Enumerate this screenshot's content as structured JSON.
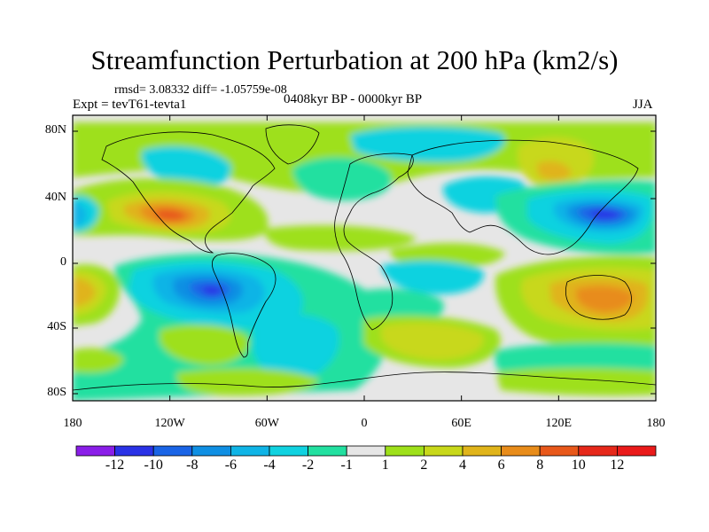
{
  "title": "Streamfunction Perturbation at 200 hPa (km2/s)",
  "stats": "rmsd= 3.08332  diff= -1.05759e-08",
  "experiment": "Expt = tevT61-tevta1",
  "period": "0408kyr BP - 0000kyr BP",
  "season": "JJA",
  "y_ticks": [
    "80N",
    "40N",
    "0",
    "40S",
    "80S"
  ],
  "x_ticks": [
    "180",
    "120W",
    "60W",
    "0",
    "60E",
    "120E",
    "180"
  ],
  "colorbar": {
    "labels": [
      "-12",
      "-10",
      "-8",
      "-6",
      "-4",
      "-2",
      "-1",
      "1",
      "2",
      "4",
      "6",
      "8",
      "10",
      "12"
    ],
    "colors": [
      "#8a1ee8",
      "#2a32e6",
      "#1a64e6",
      "#0f8fe3",
      "#0fb4e6",
      "#10d2e0",
      "#22e0a0",
      "#e6e6e6",
      "#9ee01a",
      "#c8d81a",
      "#e0b41a",
      "#e88c1a",
      "#e8581a",
      "#e6281a",
      "#ea1a1a"
    ]
  },
  "map": {
    "fill_colors": {
      "neutral": "#e6e6e6",
      "neg1": "#22e0a0",
      "neg2": "#10d2e0",
      "neg4": "#0fb4e6",
      "neg6": "#0f8fe3",
      "neg8": "#1a64e6",
      "neg10": "#2a32e6",
      "neg12": "#8a1ee8",
      "pos1": "#9ee01a",
      "pos2": "#c8d81a",
      "pos4": "#e0b41a",
      "pos6": "#e88c1a",
      "pos8": "#e8581a"
    },
    "coast_color": "#000000"
  }
}
